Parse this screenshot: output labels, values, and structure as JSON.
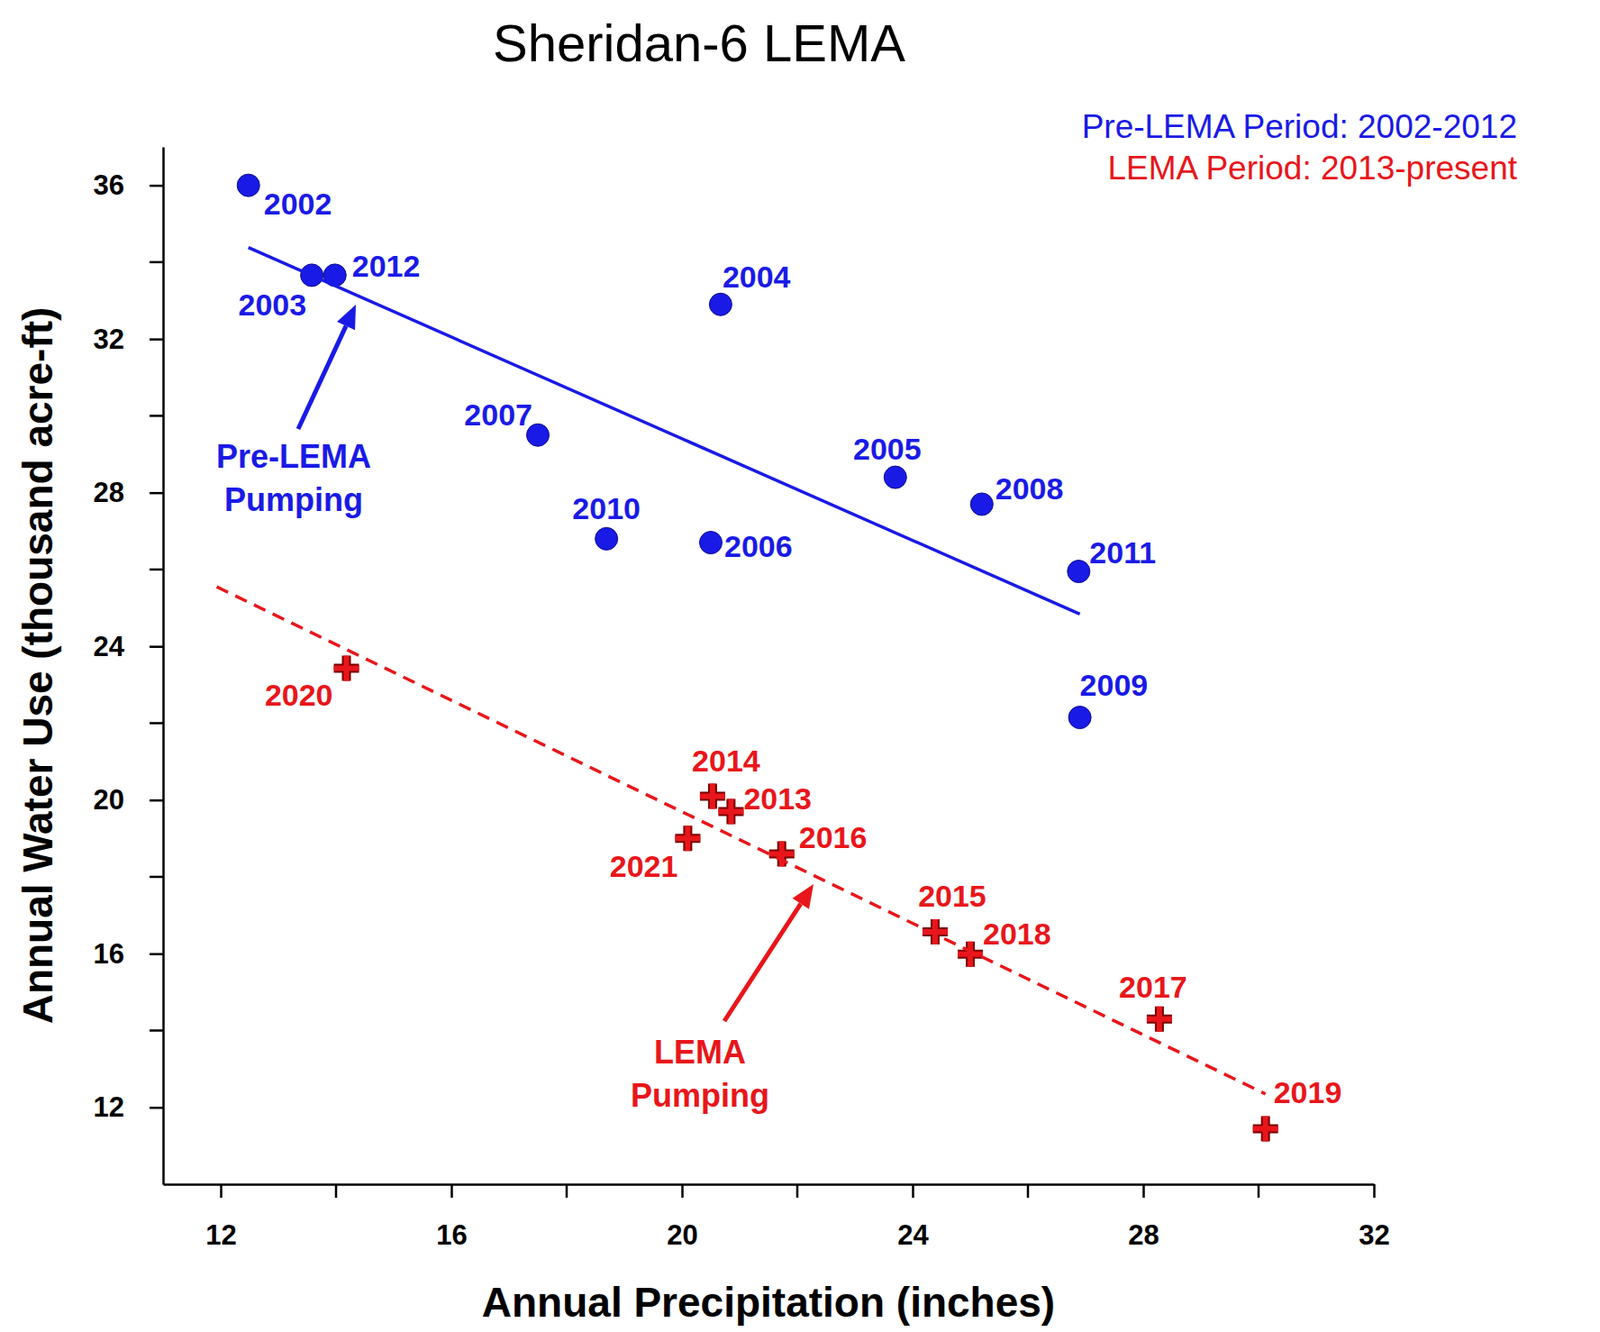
{
  "chart_data": {
    "type": "scatter",
    "title": "Sheridan-6 LEMA",
    "x_label": "Annual Precipitation (inches)",
    "y_label": "Annual Water Use (thousand acre-ft)",
    "xlim": [
      11,
      32
    ],
    "ylim": [
      10,
      37
    ],
    "xticks": [
      12,
      16,
      20,
      24,
      28,
      32
    ],
    "yticks": [
      12,
      16,
      20,
      24,
      28,
      32,
      36
    ],
    "legend": "upper right",
    "series": [
      {
        "name": "Pre-LEMA Period: 2002-2012",
        "type": "scatter",
        "color": "#1a1ae6",
        "marker": "circle",
        "x": [
          12.48,
          13.58,
          13.98,
          20.67,
          17.5,
          18.69,
          20.5,
          23.7,
          25.2,
          26.88,
          26.9
        ],
        "values": [
          36.0,
          33.66,
          33.66,
          32.9,
          29.5,
          26.8,
          26.7,
          28.4,
          27.7,
          25.95,
          22.15
        ],
        "labels": [
          "2002",
          "2003",
          "2012",
          "2004",
          "2007",
          "2010",
          "2006",
          "2005",
          "2008",
          "2011",
          "2009"
        ]
      },
      {
        "name": "LEMA Period: 2013-present",
        "type": "scatter",
        "color": "#e8161b",
        "marker": "plus",
        "x": [
          14.18,
          20.53,
          20.85,
          20.1,
          21.73,
          24.39,
          25.0,
          28.28,
          30.12
        ],
        "values": [
          23.43,
          20.1,
          19.7,
          19.0,
          18.6,
          16.57,
          15.99,
          14.3,
          11.44
        ],
        "labels": [
          "2020",
          "2014",
          "2013",
          "2021",
          "2016",
          "2015",
          "2018",
          "2017",
          "2019"
        ]
      },
      {
        "name": "Pre-LEMA Pumping",
        "type": "line",
        "line_style": "solid",
        "color": "#1a1ae6",
        "x": [
          12.48,
          26.9
        ],
        "values": [
          34.38,
          24.84
        ]
      },
      {
        "name": "LEMA Pumping",
        "type": "line",
        "line_style": "dashed",
        "color": "#e8161b",
        "x": [
          11.93,
          30.12
        ],
        "values": [
          25.55,
          12.35
        ]
      }
    ]
  }
}
